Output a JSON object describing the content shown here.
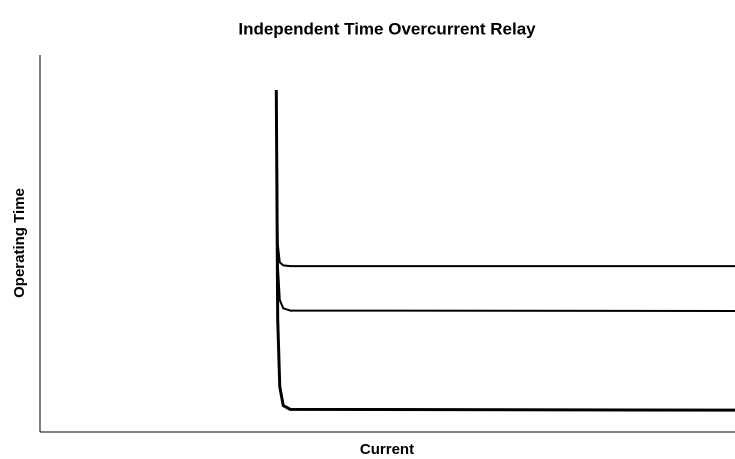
{
  "chart_data": {
    "type": "line",
    "title": "Independent Time Overcurrent Relay",
    "x_label": "Current",
    "y_label": "Operating Time",
    "x": [
      3.4,
      3.42,
      3.45,
      3.5,
      3.6,
      10
    ],
    "series": [
      {
        "color": "#000000",
        "values": [
          9.07,
          5.0,
          4.5,
          4.42,
          4.4,
          4.4
        ]
      },
      {
        "color": "#000000",
        "values": [
          9.07,
          4.5,
          3.5,
          3.28,
          3.22,
          3.21
        ]
      },
      {
        "color": "#000000",
        "values": [
          9.07,
          3.0,
          1.2,
          0.7,
          0.6,
          0.58
        ]
      }
    ],
    "xlim": [
      0,
      10
    ],
    "ylim": [
      0,
      10
    ]
  }
}
